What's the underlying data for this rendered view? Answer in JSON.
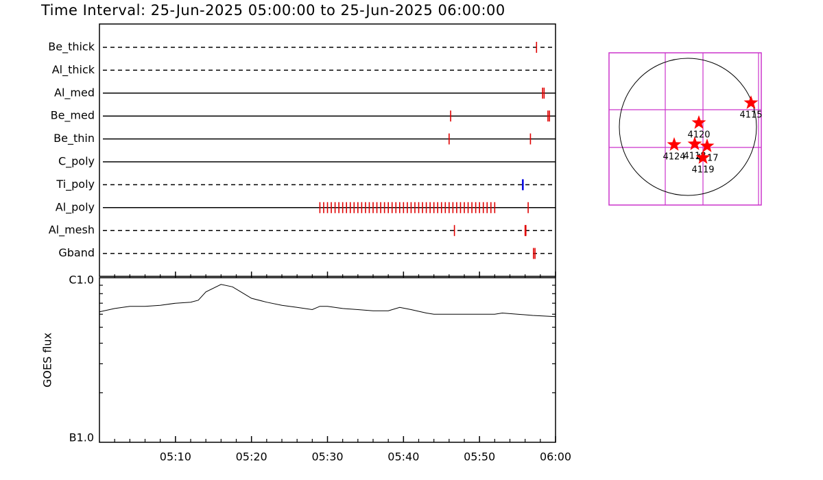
{
  "title": "Time Interval: 25-Jun-2025 05:00:00 to 25-Jun-2025 06:00:00",
  "chart_data": [
    {
      "type": "timeline",
      "xlim": [
        0,
        60
      ],
      "series": [
        {
          "name": "Be_thick",
          "line_style": "dashed",
          "color": "#e00000",
          "values": [
            57.5
          ]
        },
        {
          "name": "Al_thick",
          "line_style": "dashed",
          "color": "#e00000",
          "values": []
        },
        {
          "name": "Al_med",
          "line_style": "solid",
          "color": "#e00000",
          "values": [
            58.3,
            58.5
          ]
        },
        {
          "name": "Be_med",
          "line_style": "solid",
          "color": "#e00000",
          "values": [
            46.2,
            59.0,
            59.2
          ]
        },
        {
          "name": "Be_thin",
          "line_style": "solid",
          "color": "#e00000",
          "values": [
            46.0,
            56.7
          ]
        },
        {
          "name": "C_poly",
          "line_style": "solid",
          "color": "#e00000",
          "values": []
        },
        {
          "name": "Ti_poly",
          "line_style": "dashed",
          "color": "#0000e0",
          "values": [
            55.7
          ]
        },
        {
          "name": "Al_poly",
          "line_style": "solid",
          "color": "#e00000",
          "values": [
            29,
            29.5,
            30,
            30.5,
            31,
            31.5,
            32,
            32.5,
            33,
            33.5,
            34,
            34.5,
            35,
            35.5,
            36,
            36.5,
            37,
            37.5,
            38,
            38.5,
            39,
            39.5,
            40,
            40.5,
            41,
            41.5,
            42,
            42.5,
            43,
            43.5,
            44,
            44.5,
            45,
            45.5,
            46,
            46.5,
            47,
            47.5,
            48,
            48.5,
            49,
            49.5,
            50,
            50.5,
            51,
            51.5,
            52,
            56.4
          ]
        },
        {
          "name": "Al_mesh",
          "line_style": "dashed",
          "color": "#e00000",
          "values": [
            46.7,
            56.0,
            56.1
          ]
        },
        {
          "name": "Gband",
          "line_style": "dashed",
          "color": "#e00000",
          "values": [
            57.1,
            57.3
          ]
        }
      ]
    },
    {
      "type": "line",
      "ylabel": "GOES flux",
      "log_y": true,
      "color": "#000000",
      "xlim": [
        0,
        60
      ],
      "ylim": [
        1e-07,
        1e-06
      ],
      "xticks": [
        {
          "value": 10,
          "label": "05:10"
        },
        {
          "value": 20,
          "label": "05:20"
        },
        {
          "value": 30,
          "label": "05:30"
        },
        {
          "value": 40,
          "label": "05:40"
        },
        {
          "value": 50,
          "label": "05:50"
        },
        {
          "value": 60,
          "label": "06:00"
        }
      ],
      "xticks_minor": [
        2,
        4,
        6,
        8,
        12,
        14,
        16,
        18,
        22,
        24,
        26,
        28,
        32,
        34,
        36,
        38,
        42,
        44,
        46,
        48,
        52,
        54,
        56,
        58
      ],
      "yticks": [
        {
          "value": 1e-07,
          "label": "B1.0"
        },
        {
          "value": 1e-06,
          "label": "C1.0"
        }
      ],
      "yticks_minor": [
        2e-07,
        3e-07,
        4e-07,
        5e-07,
        6e-07,
        7e-07,
        8e-07,
        9e-07
      ],
      "x": [
        0,
        2,
        4,
        6,
        8,
        10,
        12,
        13,
        14,
        16,
        17.5,
        19,
        20,
        22,
        24,
        26,
        28,
        29,
        30,
        32,
        34,
        36,
        38,
        39.5,
        41,
        43,
        44,
        46,
        48,
        50,
        52,
        53,
        55,
        57,
        60
      ],
      "values": [
        6.2e-07,
        6.5e-07,
        6.7e-07,
        6.7e-07,
        6.8e-07,
        7e-07,
        7.1e-07,
        7.3e-07,
        8.2e-07,
        9.1e-07,
        8.8e-07,
        8e-07,
        7.5e-07,
        7.1e-07,
        6.8e-07,
        6.6e-07,
        6.4e-07,
        6.7e-07,
        6.7e-07,
        6.5e-07,
        6.4e-07,
        6.3e-07,
        6.3e-07,
        6.6e-07,
        6.4e-07,
        6.1e-07,
        6e-07,
        6e-07,
        6e-07,
        6e-07,
        6e-07,
        6.1e-07,
        6e-07,
        5.9e-07,
        5.8e-07
      ]
    },
    {
      "type": "scatter",
      "color": "#ff0000",
      "grid_color": "#cc33cc",
      "xlim": [
        -1.15,
        1.07
      ],
      "ylim": [
        -1.14,
        1.08
      ],
      "radius": 1,
      "grid_x": [
        -0.33,
        0.22,
        1.03
      ],
      "grid_y": [
        -0.3,
        0.25
      ],
      "points": [
        {
          "label": "4115",
          "x": 0.92,
          "y": 0.35
        },
        {
          "label": "4120",
          "x": 0.16,
          "y": 0.06
        },
        {
          "label": "4124",
          "x": -0.2,
          "y": -0.26
        },
        {
          "label": "4118",
          "x": 0.1,
          "y": -0.25
        },
        {
          "label": "4117",
          "x": 0.28,
          "y": -0.28
        },
        {
          "label": "4119",
          "x": 0.22,
          "y": -0.45
        }
      ]
    }
  ]
}
